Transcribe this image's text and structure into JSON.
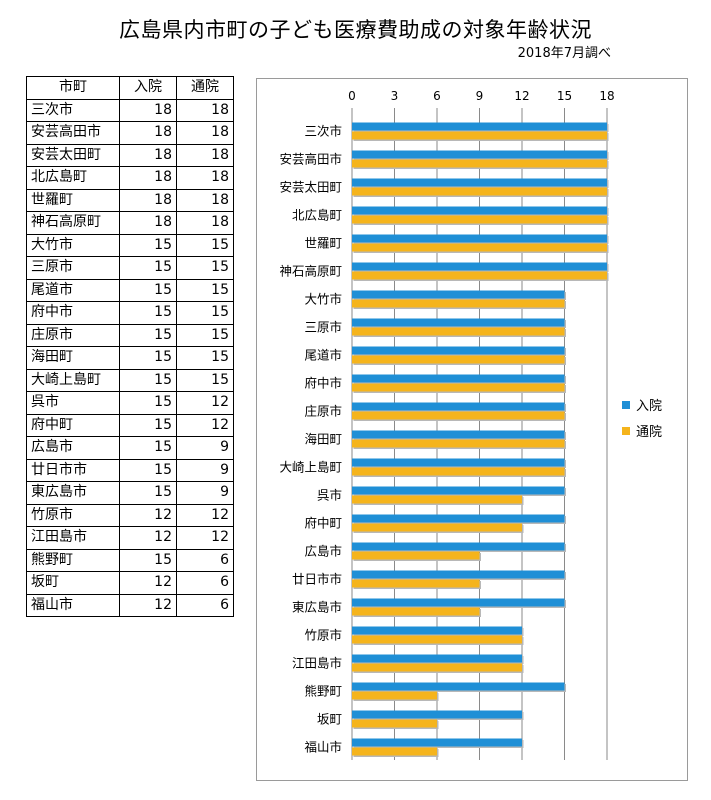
{
  "title": "広島県内市町の子ども医療費助成の対象年齢状況",
  "subtitle": "2018年7月調べ",
  "table": {
    "headers": [
      "市町",
      "入院",
      "通院"
    ]
  },
  "colors": {
    "inpatient": "#1f8fd6",
    "outpatient": "#f5b41c",
    "grid": "#8a8a8a"
  },
  "chart_data": {
    "type": "bar",
    "orientation": "horizontal",
    "categories": [
      "三次市",
      "安芸高田市",
      "安芸太田町",
      "北広島町",
      "世羅町",
      "神石高原町",
      "大竹市",
      "三原市",
      "尾道市",
      "府中市",
      "庄原市",
      "海田町",
      "大崎上島町",
      "呉市",
      "府中町",
      "広島市",
      "廿日市市",
      "東広島市",
      "竹原市",
      "江田島市",
      "熊野町",
      "坂町",
      "福山市"
    ],
    "series": [
      {
        "name": "入院",
        "values": [
          18,
          18,
          18,
          18,
          18,
          18,
          15,
          15,
          15,
          15,
          15,
          15,
          15,
          15,
          15,
          15,
          15,
          15,
          12,
          12,
          15,
          12,
          12
        ]
      },
      {
        "name": "通院",
        "values": [
          18,
          18,
          18,
          18,
          18,
          18,
          15,
          15,
          15,
          15,
          15,
          15,
          15,
          12,
          12,
          9,
          9,
          9,
          12,
          12,
          6,
          6,
          6
        ]
      }
    ],
    "xlim": [
      0,
      18
    ],
    "xticks": [
      "0",
      "3",
      "6",
      "9",
      "12",
      "15",
      "18"
    ],
    "xaxis_position": "top",
    "grid": true,
    "legend_position": "right"
  }
}
